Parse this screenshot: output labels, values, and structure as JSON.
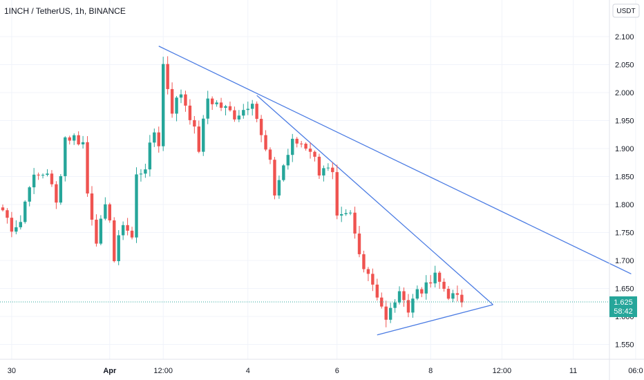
{
  "chart_data": {
    "type": "candlestick",
    "title": "1INCH / TetherUS, 1h, BINANCE",
    "currency": "USDT",
    "ylim": [
      1.53,
      2.12
    ],
    "yticks": [
      "2.100",
      "2.050",
      "2.000",
      "1.950",
      "1.900",
      "1.850",
      "1.800",
      "1.750",
      "1.700",
      "1.650",
      "1.600",
      "1.550"
    ],
    "x_tick_labels": [
      {
        "label": "30",
        "bold": false,
        "bar": 2
      },
      {
        "label": "Apr",
        "bold": true,
        "bar": 24
      },
      {
        "label": "12:00",
        "bold": false,
        "bar": 36
      },
      {
        "label": "4",
        "bold": false,
        "bar": 55
      },
      {
        "label": "6",
        "bold": false,
        "bar": 75
      },
      {
        "label": "8",
        "bold": false,
        "bar": 96
      },
      {
        "label": "12:00",
        "bold": false,
        "bar": 112
      },
      {
        "label": "11",
        "bold": false,
        "bar": 128
      },
      {
        "label": "06:0",
        "bold": false,
        "bar": 142
      }
    ],
    "current_price": "1.625",
    "countdown": "58:42",
    "current_value": 1.626,
    "trendlines": [
      {
        "name": "upper-resistance",
        "from": [
          35,
          2.083
        ],
        "to": [
          141,
          1.676
        ]
      },
      {
        "name": "inner-resistance",
        "from": [
          57,
          1.995
        ],
        "to": [
          110,
          1.621
        ]
      },
      {
        "name": "lower-support",
        "from": [
          84,
          1.567
        ],
        "to": [
          110,
          1.621
        ]
      }
    ],
    "anchors": [
      [
        0,
        1.79
      ],
      [
        2,
        1.76
      ],
      [
        4,
        1.77
      ],
      [
        6,
        1.84
      ],
      [
        8,
        1.85
      ],
      [
        10,
        1.86
      ],
      [
        12,
        1.8
      ],
      [
        14,
        1.92
      ],
      [
        16,
        1.92
      ],
      [
        18,
        1.91
      ],
      [
        19,
        1.82
      ],
      [
        21,
        1.74
      ],
      [
        23,
        1.79
      ],
      [
        24,
        1.78
      ],
      [
        25,
        1.7
      ],
      [
        27,
        1.77
      ],
      [
        29,
        1.74
      ],
      [
        30,
        1.85
      ],
      [
        32,
        1.87
      ],
      [
        34,
        1.93
      ],
      [
        35,
        1.91
      ],
      [
        36,
        2.05
      ],
      [
        38,
        1.97
      ],
      [
        40,
        2.0
      ],
      [
        42,
        1.96
      ],
      [
        44,
        1.9
      ],
      [
        46,
        1.99
      ],
      [
        48,
        1.98
      ],
      [
        50,
        1.97
      ],
      [
        52,
        1.96
      ],
      [
        54,
        1.97
      ],
      [
        56,
        1.99
      ],
      [
        58,
        1.92
      ],
      [
        60,
        1.87
      ],
      [
        61,
        1.82
      ],
      [
        63,
        1.87
      ],
      [
        65,
        1.91
      ],
      [
        67,
        1.91
      ],
      [
        69,
        1.9
      ],
      [
        71,
        1.86
      ],
      [
        72,
        1.87
      ],
      [
        74,
        1.85
      ],
      [
        75,
        1.77
      ],
      [
        78,
        1.78
      ],
      [
        80,
        1.71
      ],
      [
        82,
        1.68
      ],
      [
        84,
        1.64
      ],
      [
        85,
        1.62
      ],
      [
        86,
        1.59
      ],
      [
        88,
        1.63
      ],
      [
        90,
        1.64
      ],
      [
        91,
        1.61
      ],
      [
        93,
        1.65
      ],
      [
        95,
        1.65
      ],
      [
        97,
        1.67
      ],
      [
        99,
        1.65
      ],
      [
        100,
        1.64
      ],
      [
        102,
        1.63
      ],
      [
        103,
        1.625
      ]
    ]
  }
}
